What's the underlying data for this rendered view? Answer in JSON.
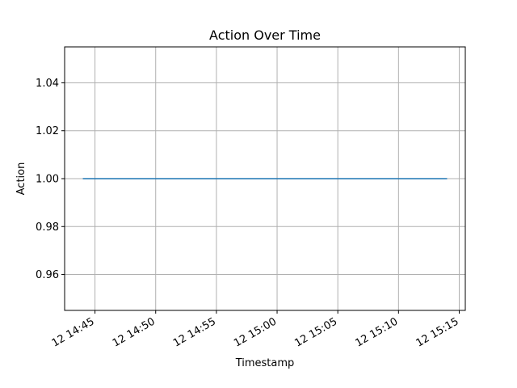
{
  "chart_data": {
    "type": "line",
    "title": "Action Over Time",
    "xlabel": "Timestamp",
    "ylabel": "Action",
    "x": [
      "12 14:44",
      "12 15:14"
    ],
    "series": [
      {
        "values": [
          1.0,
          1.0
        ]
      }
    ],
    "xlim": [
      "12 14:42.5",
      "12 15:15.5"
    ],
    "ylim": [
      0.945,
      1.055
    ],
    "x_ticks": [
      "12 14:45",
      "12 14:50",
      "12 14:55",
      "12 15:00",
      "12 15:05",
      "12 15:10",
      "12 15:15"
    ],
    "y_ticks": [
      "0.96",
      "0.98",
      "1.00",
      "1.02",
      "1.04"
    ],
    "grid": true,
    "legend": "none",
    "colors": {
      "line": "#1f77b4",
      "grid": "#b0b0b0",
      "axes": "#000000"
    }
  }
}
